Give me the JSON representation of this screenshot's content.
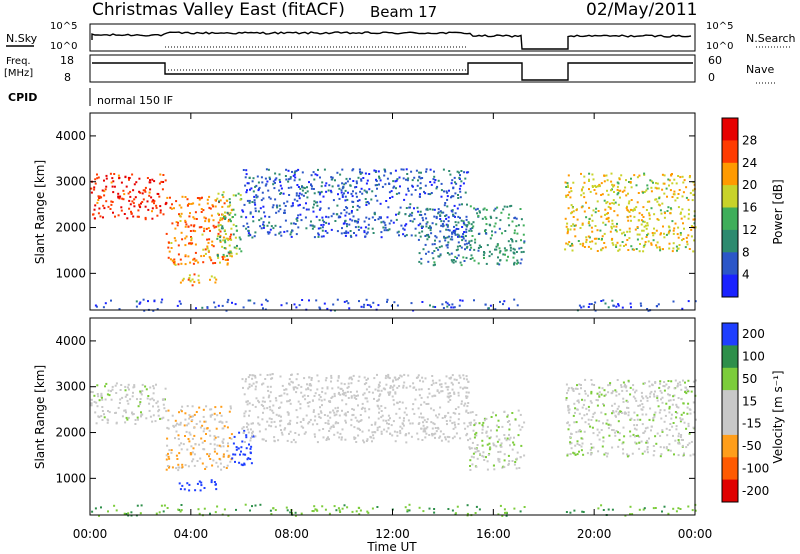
{
  "header": {
    "title": "Christmas Valley East (fitACF)",
    "beam": "Beam 17",
    "date": "02/May/2011"
  },
  "meta": {
    "nsky_label": "N.Sky",
    "nsearch_label": "N.Search",
    "freq_label_1": "Freq.",
    "freq_label_2": "[MHz]",
    "nave_label": "Nave",
    "cpid_label": "CPID",
    "cpid_value": "normal 150 IF",
    "noise_ticks": [
      "10^5",
      "10^0"
    ],
    "freq_ticks": [
      "18",
      "8"
    ],
    "nave_ticks": [
      "60",
      "0"
    ]
  },
  "chart_data": [
    {
      "type": "heatmap",
      "name": "power",
      "ylabel": "Slant Range [km]",
      "xlabel": "",
      "yticks": [
        1000,
        2000,
        3000,
        4000
      ],
      "ylim": [
        200,
        4500
      ],
      "xlim_hours": [
        0,
        24
      ],
      "colorbar": {
        "label": "Power [dB]",
        "ticks": [
          "28",
          "24",
          "20",
          "16",
          "12",
          "8",
          "4"
        ],
        "range": [
          0,
          30
        ]
      },
      "grid": false,
      "regions": [
        {
          "t": [
            0,
            3
          ],
          "r": [
            2200,
            3200
          ],
          "power": 26
        },
        {
          "t": [
            3,
            5.6
          ],
          "r": [
            1200,
            2700
          ],
          "power": 22
        },
        {
          "t": [
            3.5,
            5
          ],
          "r": [
            750,
            1000
          ],
          "power": 20
        },
        {
          "t": [
            5,
            6
          ],
          "r": [
            1400,
            2800
          ],
          "power": 14
        },
        {
          "t": [
            6,
            15
          ],
          "r": [
            1800,
            3300
          ],
          "power": 6
        },
        {
          "t": [
            13,
            15
          ],
          "r": [
            1200,
            2300
          ],
          "power": 8
        },
        {
          "t": [
            15,
            17.2
          ],
          "r": [
            1200,
            2500
          ],
          "power": 10
        },
        {
          "t": [
            18.8,
            24
          ],
          "r": [
            1500,
            3200
          ],
          "power": 18
        }
      ]
    },
    {
      "type": "heatmap",
      "name": "velocity",
      "ylabel": "Slant Range [km]",
      "xlabel": "Time UT",
      "xticks": [
        "00:00",
        "04:00",
        "08:00",
        "12:00",
        "16:00",
        "20:00",
        "00:00"
      ],
      "yticks": [
        1000,
        2000,
        3000,
        4000
      ],
      "ylim": [
        200,
        4500
      ],
      "xlim_hours": [
        0,
        24
      ],
      "colorbar": {
        "label": "Velocity [m s⁻¹]",
        "ticks": [
          "200",
          "100",
          "50",
          "15",
          "-15",
          "-50",
          "-100",
          "-200"
        ],
        "range": [
          -250,
          250
        ]
      },
      "grid": false,
      "regions": [
        {
          "t": [
            0,
            3
          ],
          "r": [
            2200,
            3100
          ],
          "velocity": 0
        },
        {
          "t": [
            3,
            5.6
          ],
          "r": [
            1200,
            2600
          ],
          "velocity": -40
        },
        {
          "t": [
            3.5,
            5
          ],
          "r": [
            750,
            1000
          ],
          "velocity": 220
        },
        {
          "t": [
            5.6,
            6.5
          ],
          "r": [
            1300,
            2100
          ],
          "velocity": 230
        },
        {
          "t": [
            6,
            15
          ],
          "r": [
            1800,
            3300
          ],
          "velocity": -20
        },
        {
          "t": [
            15,
            17.2
          ],
          "r": [
            1200,
            2500
          ],
          "velocity": 0
        },
        {
          "t": [
            18.8,
            24
          ],
          "r": [
            1500,
            3200
          ],
          "velocity": 0
        }
      ]
    }
  ]
}
